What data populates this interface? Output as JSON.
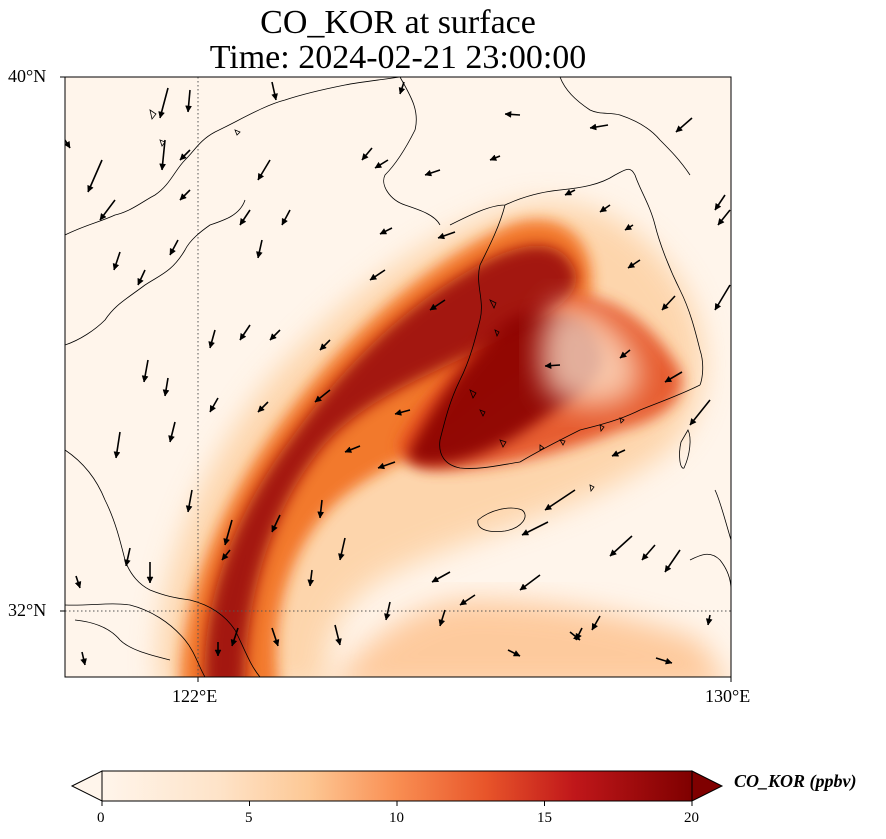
{
  "title_line1": "CO_KOR at surface",
  "title_line2": "Time: 2024-02-21 23:00:00",
  "map": {
    "lon_range": [
      119.5,
      130
    ],
    "lat_range": [
      31,
      40
    ],
    "lat_ticks": [
      {
        "value": 40,
        "label": "40°N"
      },
      {
        "value": 32,
        "label": "32°N"
      }
    ],
    "lon_ticks": [
      {
        "value": 122,
        "label": "122°E"
      },
      {
        "value": 130,
        "label": "130°E"
      }
    ],
    "gridlines": {
      "lon": 122,
      "lat": 32,
      "style": "dotted"
    }
  },
  "colorbar": {
    "label": "CO_KOR (ppbv)",
    "min": 0,
    "max": 20,
    "ticks": [
      "0",
      "5",
      "10",
      "15",
      "20"
    ],
    "colormap": [
      "#fff5eb",
      "#fdd9b4",
      "#fda66b",
      "#f3701b",
      "#d94701",
      "#a30000",
      "#7f0000"
    ],
    "extend": "both"
  }
}
